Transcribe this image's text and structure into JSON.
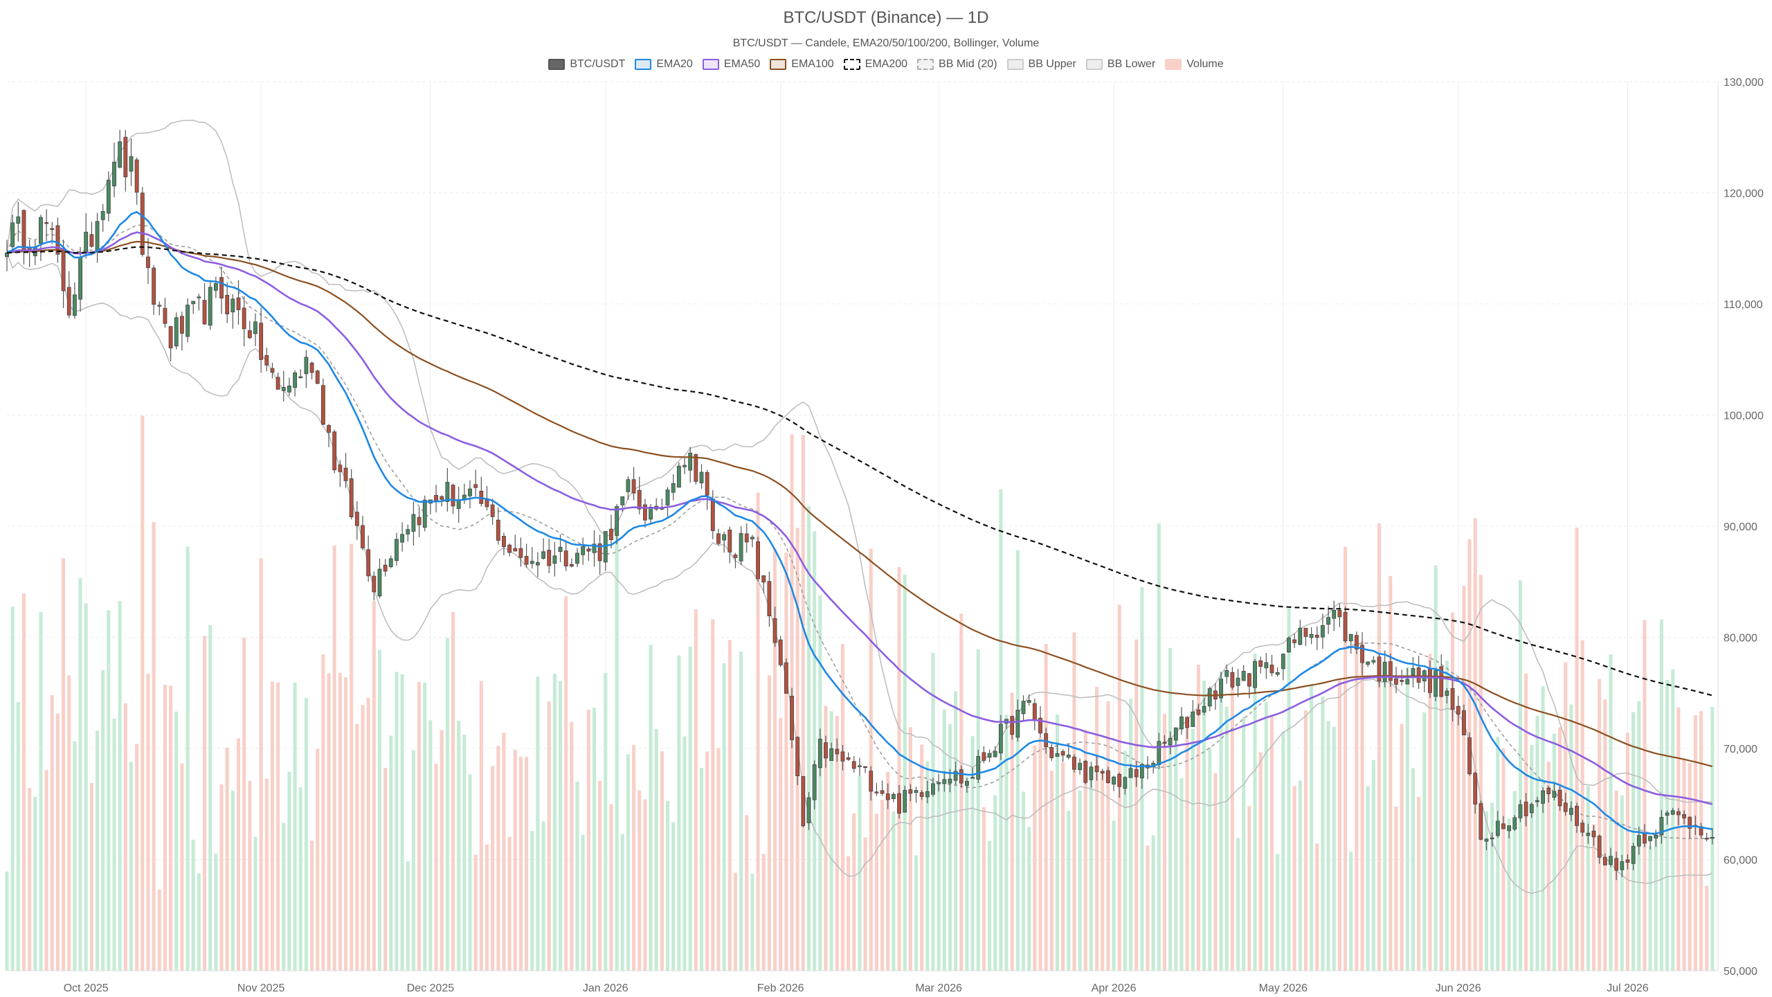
{
  "chart_data": {
    "type": "candlestick",
    "title": "BTC/USDT (Binance) — 1D",
    "subtitle": "BTC/USDT — Candele, EMA20/50/100/200, Bollinger, Volume",
    "ylim": [
      50000,
      130000
    ],
    "y_ticks": [
      50000,
      60000,
      70000,
      80000,
      90000,
      100000,
      110000,
      120000,
      130000
    ],
    "y_tick_labels": [
      "50,000",
      "60,000",
      "70,000",
      "80,000",
      "90,000",
      "100,000",
      "110,000",
      "120,000",
      "130,000"
    ],
    "x_start": "2025-09-17",
    "x_end": "2026-07-17",
    "x_ticks": [
      "2025-10-01",
      "2025-11-01",
      "2025-12-01",
      "2026-01-01",
      "2026-02-01",
      "2026-03-01",
      "2026-04-01",
      "2026-05-01",
      "2026-06-01",
      "2026-07-01"
    ],
    "x_tick_labels": [
      "Oct 2025",
      "Nov 2025",
      "Dec 2025",
      "Jan 2026",
      "Feb 2026",
      "Mar 2026",
      "Apr 2026",
      "May 2026",
      "Jun 2026",
      "Jul 2026"
    ],
    "price_anchors": [
      {
        "date": "2025-09-17",
        "close": 116000
      },
      {
        "date": "2025-09-24",
        "close": 117000
      },
      {
        "date": "2025-09-28",
        "close": 110000
      },
      {
        "date": "2025-10-03",
        "close": 118000
      },
      {
        "date": "2025-10-06",
        "close": 124000
      },
      {
        "date": "2025-10-10",
        "close": 121000
      },
      {
        "date": "2025-10-11",
        "close": 113000
      },
      {
        "date": "2025-10-16",
        "close": 107000
      },
      {
        "date": "2025-10-25",
        "close": 111000
      },
      {
        "date": "2025-10-30",
        "close": 108000
      },
      {
        "date": "2025-11-04",
        "close": 102000
      },
      {
        "date": "2025-11-10",
        "close": 105000
      },
      {
        "date": "2025-11-14",
        "close": 96000
      },
      {
        "date": "2025-11-21",
        "close": 85000
      },
      {
        "date": "2025-11-26",
        "close": 90000
      },
      {
        "date": "2025-12-03",
        "close": 93000
      },
      {
        "date": "2025-12-10",
        "close": 92000
      },
      {
        "date": "2025-12-16",
        "close": 87000
      },
      {
        "date": "2025-12-31",
        "close": 88000
      },
      {
        "date": "2026-01-05",
        "close": 93000
      },
      {
        "date": "2026-01-10",
        "close": 90500
      },
      {
        "date": "2026-01-14",
        "close": 96500
      },
      {
        "date": "2026-01-18",
        "close": 95000
      },
      {
        "date": "2026-01-20",
        "close": 89000
      },
      {
        "date": "2026-01-27",
        "close": 88000
      },
      {
        "date": "2026-02-01",
        "close": 78000
      },
      {
        "date": "2026-02-05",
        "close": 63000
      },
      {
        "date": "2026-02-08",
        "close": 70000
      },
      {
        "date": "2026-02-15",
        "close": 68000
      },
      {
        "date": "2026-02-22",
        "close": 65000
      },
      {
        "date": "2026-03-02",
        "close": 68000
      },
      {
        "date": "2026-03-06",
        "close": 67000
      },
      {
        "date": "2026-03-10",
        "close": 70000
      },
      {
        "date": "2026-03-17",
        "close": 74000
      },
      {
        "date": "2026-03-20",
        "close": 70000
      },
      {
        "date": "2026-03-30",
        "close": 67000
      },
      {
        "date": "2026-04-05",
        "close": 67500
      },
      {
        "date": "2026-04-13",
        "close": 72000
      },
      {
        "date": "2026-04-20",
        "close": 76000
      },
      {
        "date": "2026-04-28",
        "close": 77000
      },
      {
        "date": "2026-05-05",
        "close": 80500
      },
      {
        "date": "2026-05-10",
        "close": 82000
      },
      {
        "date": "2026-05-14",
        "close": 79000
      },
      {
        "date": "2026-05-18",
        "close": 77000
      },
      {
        "date": "2026-05-28",
        "close": 76000
      },
      {
        "date": "2026-06-01",
        "close": 73000
      },
      {
        "date": "2026-06-05",
        "close": 62000
      },
      {
        "date": "2026-06-10",
        "close": 64000
      },
      {
        "date": "2026-06-17",
        "close": 66000
      },
      {
        "date": "2026-06-23",
        "close": 63000
      },
      {
        "date": "2026-06-29",
        "close": 59000
      },
      {
        "date": "2026-07-03",
        "close": 62000
      },
      {
        "date": "2026-07-09",
        "close": 64000
      },
      {
        "date": "2026-07-16",
        "close": 62500
      }
    ],
    "volume_note": "Volume bars in bottom band (no printed axis)",
    "legend": [
      {
        "label": "BTC/USDT",
        "fill": "#666666",
        "border": "#555555",
        "dash": false
      },
      {
        "label": "EMA20",
        "fill": "#dde9f5",
        "border": "#1e88e5",
        "dash": false
      },
      {
        "label": "EMA50",
        "fill": "#eee6fa",
        "border": "#8c5de0",
        "dash": false
      },
      {
        "label": "EMA100",
        "fill": "#eee6dd",
        "border": "#8b4f20",
        "dash": false
      },
      {
        "label": "EMA200",
        "fill": "#ffffff",
        "border": "#111111",
        "dash": true
      },
      {
        "label": "BB Mid (20)",
        "fill": "#f2f2f2",
        "border": "#aaaaaa",
        "dash": true
      },
      {
        "label": "BB Upper",
        "fill": "#eeeeee",
        "border": "#cccccc",
        "dash": false
      },
      {
        "label": "BB Lower",
        "fill": "#eeeeee",
        "border": "#cccccc",
        "dash": false
      },
      {
        "label": "Volume",
        "fill": "#f8d0c8",
        "border": "#f8d0c8",
        "dash": false
      }
    ],
    "colors": {
      "up": "#4a8a63",
      "down": "#b5513f",
      "vol_up": "#c6ebd6",
      "vol_down": "#f8d0c8",
      "ema20": "#1e88e5",
      "ema50": "#8c5de0",
      "ema100": "#8b4f20",
      "ema200": "#111111",
      "bb_mid": "#999999",
      "bb_band": "#bbbbbb"
    }
  }
}
